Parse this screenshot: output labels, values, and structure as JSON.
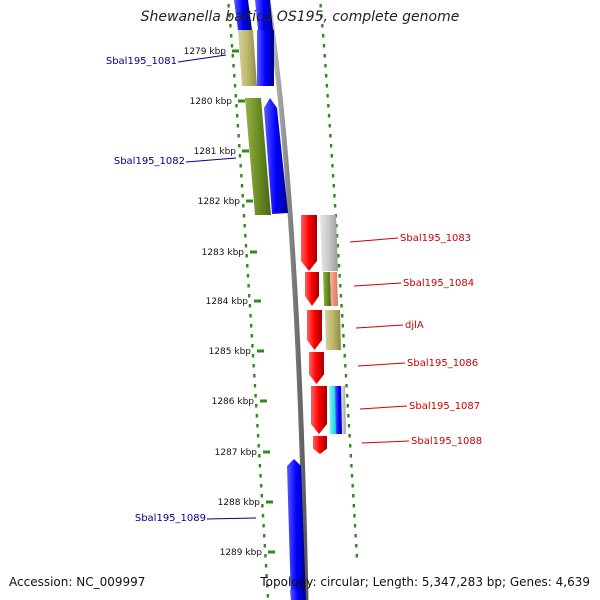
{
  "title": "Shewanella baltica OS195, complete genome",
  "footer": {
    "accession": "Accession: NC_009997",
    "summary": "Topology: circular; Length: 5,347,283 bp; Genes: 4,639"
  },
  "colors": {
    "minus_strand": "#0000ff",
    "plus_strand": "#ff0000",
    "backbone": "#8c8c8c",
    "dots": "#2e8b1e",
    "label_minus": "#00008b",
    "label_plus": "#cc0000"
  },
  "ticks": [
    {
      "label": "1279 kbp"
    },
    {
      "label": "1280 kbp"
    },
    {
      "label": "1281 kbp"
    },
    {
      "label": "1282 kbp"
    },
    {
      "label": "1283 kbp"
    },
    {
      "label": "1284 kbp"
    },
    {
      "label": "1285 kbp"
    },
    {
      "label": "1286 kbp"
    },
    {
      "label": "1287 kbp"
    },
    {
      "label": "1288 kbp"
    },
    {
      "label": "1289 kbp"
    }
  ],
  "genes": [
    {
      "name": "Sbal195_1081",
      "strand": "minus"
    },
    {
      "name": "Sbal195_1082",
      "strand": "minus"
    },
    {
      "name": "Sbal195_1083",
      "strand": "plus"
    },
    {
      "name": "Sbal195_1084",
      "strand": "plus"
    },
    {
      "name": "djlA",
      "strand": "plus"
    },
    {
      "name": "Sbal195_1086",
      "strand": "plus"
    },
    {
      "name": "Sbal195_1087",
      "strand": "plus"
    },
    {
      "name": "Sbal195_1088",
      "strand": "plus"
    },
    {
      "name": "Sbal195_1089",
      "strand": "minus"
    }
  ]
}
